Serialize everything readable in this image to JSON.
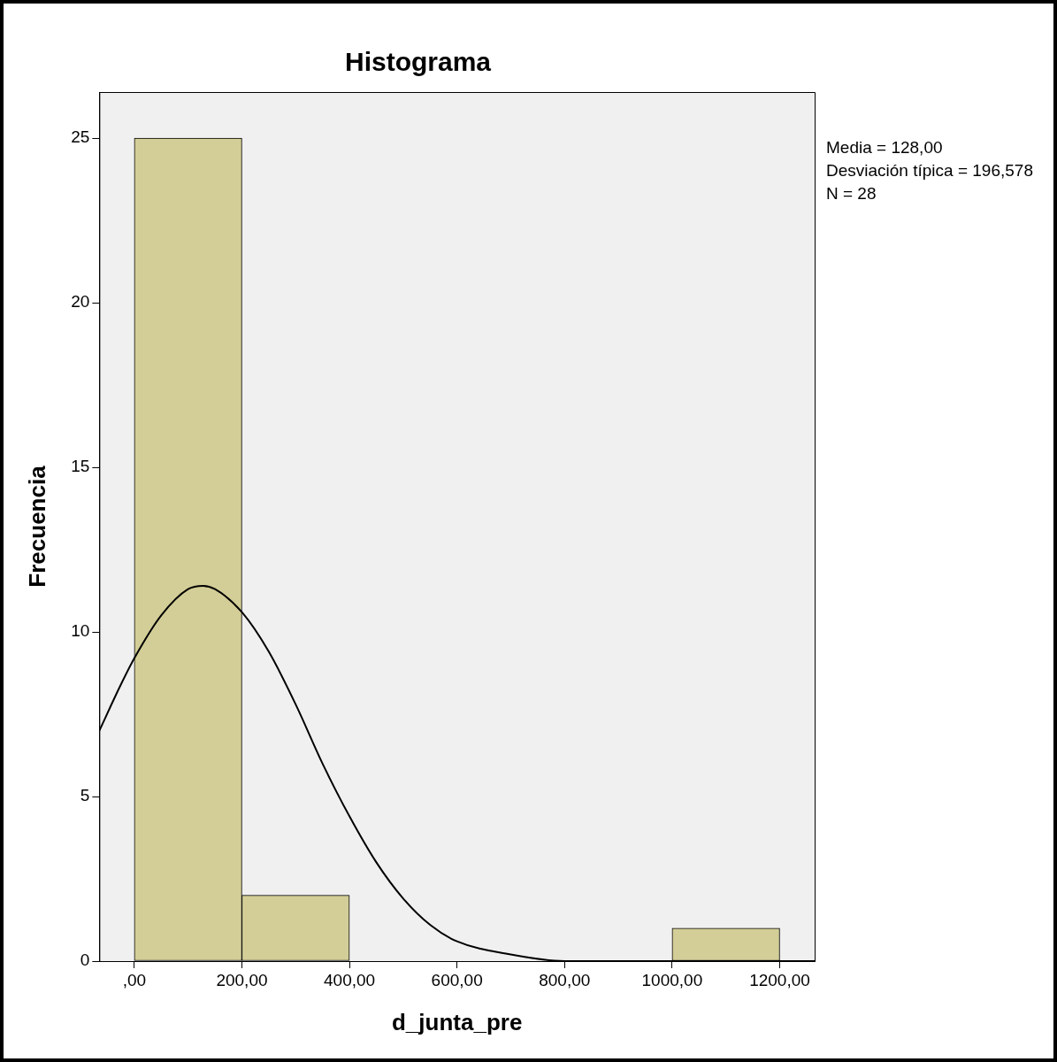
{
  "chart_data": {
    "type": "histogram",
    "title": "Histograma",
    "xlabel": "d_junta_pre",
    "ylabel": "Frecuencia",
    "bins": [
      0,
      200,
      400,
      600,
      800,
      1000,
      1200
    ],
    "values": [
      25,
      2,
      0,
      0,
      0,
      1
    ],
    "color": "#d3ce97",
    "series": [
      {
        "type": "line",
        "color": "#000000",
        "x": [
          -65,
          -25,
          0,
          50,
          100,
          128,
          150,
          200,
          250,
          300,
          350,
          400,
          450,
          500,
          550,
          600,
          700,
          800,
          900,
          1000,
          1265
        ],
        "values": [
          7.0,
          8.4,
          9.2,
          10.5,
          11.3,
          11.4,
          11.3,
          10.6,
          9.4,
          7.8,
          6.0,
          4.4,
          3.0,
          1.9,
          1.1,
          0.6,
          0.2,
          0.0,
          0.0,
          0.0,
          0.0
        ]
      }
    ],
    "xlim": [
      -65,
      1265
    ],
    "xticks": [
      {
        "value": 0,
        "label": ",00"
      },
      {
        "value": 200,
        "label": "200,00"
      },
      {
        "value": 400,
        "label": "400,00"
      },
      {
        "value": 600,
        "label": "600,00"
      },
      {
        "value": 800,
        "label": "800,00"
      },
      {
        "value": 1000,
        "label": "1000,00"
      },
      {
        "value": 1200,
        "label": "1200,00"
      }
    ],
    "ylim": [
      0,
      26.4
    ],
    "yticks": [
      0,
      5,
      10,
      15,
      20,
      25
    ],
    "annotations": [
      "Media = 128,00",
      "Desviación típica = 196,578",
      "N = 28"
    ],
    "grid": false,
    "legend": false,
    "marker": "none"
  }
}
